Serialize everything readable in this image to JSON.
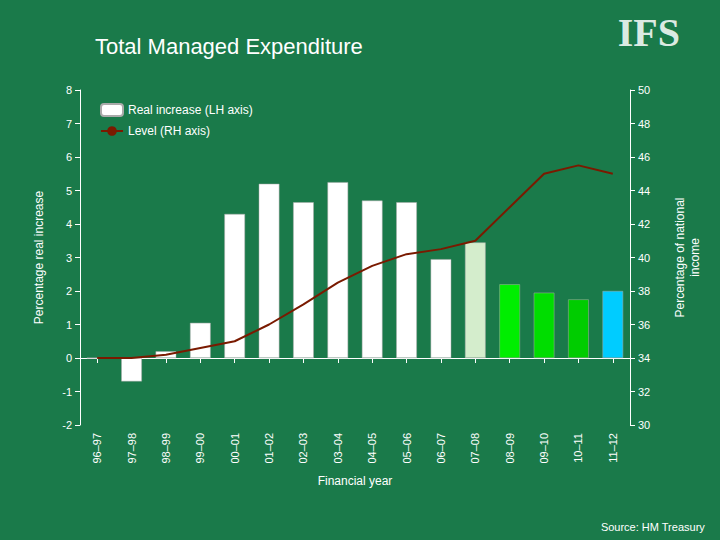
{
  "chart_data": {
    "type": "bar",
    "title": "Total Managed Expenditure",
    "xlabel": "Financial year",
    "ylabel": "Percentage real increase",
    "y2label": "Percentage of national\nincome",
    "annotations": [
      "IFS",
      "Source: HM Treasury"
    ],
    "categories": [
      "96–97",
      "97–98",
      "98–99",
      "99–00",
      "00–01",
      "01–02",
      "02–03",
      "03–04",
      "04–05",
      "05–06",
      "06–07",
      "07–08",
      "08–09",
      "09–10",
      "10–11",
      "11–12"
    ],
    "series": [
      {
        "name": "Real increase (LH axis)",
        "type": "bar",
        "colors": [
          "white",
          "white",
          "white",
          "white",
          "white",
          "white",
          "white",
          "white",
          "white",
          "white",
          "white",
          "#d4edcc",
          "#00ee00",
          "#00dd00",
          "#00cc00",
          "#00ccff"
        ],
        "values": [
          0.0,
          -0.7,
          0.2,
          1.05,
          4.3,
          5.2,
          4.65,
          5.25,
          4.7,
          4.65,
          2.95,
          3.45,
          2.2,
          1.95,
          1.75,
          2.0
        ]
      },
      {
        "name": "Level (RH axis)",
        "type": "line",
        "axis": "y2",
        "color": "#7a1a00",
        "values": [
          34.0,
          34.0,
          34.2,
          34.6,
          35.0,
          36.0,
          37.2,
          38.5,
          39.5,
          40.2,
          40.5,
          41.0,
          43.0,
          45.0,
          45.5,
          45.0
        ]
      }
    ],
    "ylim": [
      -2,
      8
    ],
    "yticks": [
      -2,
      -1,
      0,
      1,
      2,
      3,
      4,
      5,
      6,
      7,
      8
    ],
    "y2lim": [
      30,
      50
    ],
    "y2ticks": [
      30,
      32,
      34,
      36,
      38,
      40,
      42,
      44,
      46,
      48,
      50
    ],
    "grid": false,
    "legend": "upper left"
  }
}
